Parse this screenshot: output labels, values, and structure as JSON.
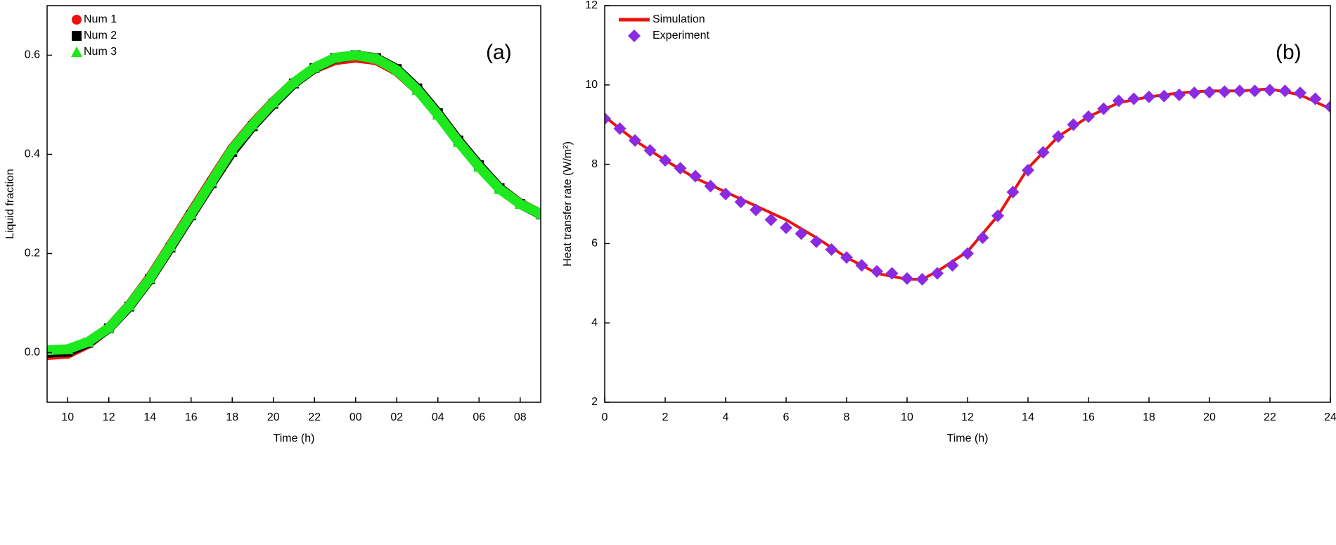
{
  "chart_data": [
    {
      "type": "line",
      "xlabel": "Time (h)",
      "ylabel": "Liquid fraction",
      "annotation": "(a)",
      "xlim": [
        9,
        33
      ],
      "xticks": [
        10,
        12,
        14,
        16,
        18,
        20,
        22,
        {
          "value": 24,
          "label": "00"
        },
        {
          "value": 26,
          "label": "02"
        },
        {
          "value": 28,
          "label": "04"
        },
        {
          "value": 30,
          "label": "06"
        },
        {
          "value": 32,
          "label": "08"
        }
      ],
      "ylim": [
        -0.1,
        0.7
      ],
      "yticks": [
        {
          "value": 0,
          "label": "0.0"
        },
        0.2,
        0.4,
        0.6
      ],
      "legend": "upper left",
      "series": [
        {
          "name": "Num 1",
          "color": "#e8150f",
          "marker": "circle",
          "x": [
            9,
            10,
            11,
            12,
            13,
            14,
            15,
            16,
            17,
            18,
            19,
            20,
            21,
            22,
            23,
            24,
            25,
            26,
            27,
            28,
            29,
            30,
            31,
            32,
            33
          ],
          "values": [
            -0.005,
            -0.002,
            0.018,
            0.05,
            0.096,
            0.152,
            0.217,
            0.283,
            0.348,
            0.412,
            0.462,
            0.506,
            0.545,
            0.573,
            0.59,
            0.595,
            0.59,
            0.568,
            0.53,
            0.481,
            0.427,
            0.377,
            0.332,
            0.301,
            0.28
          ]
        },
        {
          "name": "Num 2",
          "color": "#000000",
          "marker": "square",
          "x": [
            9,
            10,
            11,
            12,
            13,
            14,
            15,
            16,
            17,
            18,
            19,
            20,
            21,
            22,
            23,
            24,
            25,
            26,
            27,
            28,
            29,
            30,
            31,
            32,
            33
          ],
          "values": [
            0.0,
            0.002,
            0.02,
            0.049,
            0.093,
            0.148,
            0.212,
            0.277,
            0.342,
            0.405,
            0.457,
            0.502,
            0.543,
            0.574,
            0.594,
            0.6,
            0.594,
            0.572,
            0.533,
            0.483,
            0.428,
            0.378,
            0.332,
            0.3,
            0.279
          ]
        },
        {
          "name": "Num 3",
          "color": "#1ee81e",
          "marker": "triangle",
          "x": [
            9,
            10,
            11,
            12,
            13,
            14,
            15,
            16,
            17,
            18,
            19,
            20,
            21,
            22,
            23,
            24,
            25,
            26,
            27,
            28,
            29,
            30,
            31,
            32,
            33
          ],
          "values": [
            0.005,
            0.007,
            0.022,
            0.05,
            0.095,
            0.15,
            0.215,
            0.28,
            0.345,
            0.41,
            0.46,
            0.505,
            0.545,
            0.575,
            0.595,
            0.6,
            0.593,
            0.57,
            0.53,
            0.48,
            0.425,
            0.375,
            0.33,
            0.3,
            0.28
          ]
        }
      ]
    },
    {
      "type": "line",
      "xlabel": "Time (h)",
      "ylabel": "Heat transfer rate (W/m²)",
      "annotation": "(b)",
      "xlim": [
        0,
        24
      ],
      "xticks": [
        0,
        2,
        4,
        6,
        8,
        10,
        12,
        14,
        16,
        18,
        20,
        22,
        24
      ],
      "ylim": [
        2,
        12
      ],
      "yticks": [
        2,
        4,
        6,
        8,
        10,
        12
      ],
      "legend": "upper left",
      "series": [
        {
          "name": "Simulation",
          "color": "#e8150f",
          "x": [
            0,
            1,
            2,
            3,
            4,
            5,
            6,
            7,
            8,
            9,
            10,
            10.5,
            11,
            12,
            13,
            13.5,
            14,
            15,
            16,
            17,
            18,
            19,
            20,
            21,
            22,
            23,
            24
          ],
          "values": [
            9.2,
            8.6,
            8.1,
            7.65,
            7.3,
            6.95,
            6.6,
            6.15,
            5.65,
            5.25,
            5.1,
            5.1,
            5.3,
            5.8,
            6.7,
            7.3,
            7.9,
            8.7,
            9.2,
            9.55,
            9.7,
            9.8,
            9.85,
            9.85,
            9.9,
            9.75,
            9.4
          ]
        },
        {
          "name": "Experiment",
          "color": "#8a2be2",
          "marker": "diamond",
          "x": [
            0,
            0.5,
            1,
            1.5,
            2,
            2.5,
            3,
            3.5,
            4,
            4.5,
            5,
            5.5,
            6,
            6.5,
            7,
            7.5,
            8,
            8.5,
            9,
            9.5,
            10,
            10.5,
            11,
            11.5,
            12,
            12.5,
            13,
            13.5,
            14,
            14.5,
            15,
            15.5,
            16,
            16.5,
            17,
            17.5,
            18,
            18.5,
            19,
            19.5,
            20,
            20.5,
            21,
            21.5,
            22,
            22.5,
            23,
            23.5,
            24
          ],
          "values": [
            9.15,
            8.9,
            8.6,
            8.35,
            8.1,
            7.9,
            7.7,
            7.45,
            7.25,
            7.05,
            6.85,
            6.6,
            6.4,
            6.25,
            6.05,
            5.85,
            5.65,
            5.45,
            5.3,
            5.25,
            5.12,
            5.1,
            5.25,
            5.45,
            5.75,
            6.15,
            6.7,
            7.3,
            7.85,
            8.3,
            8.7,
            9.0,
            9.2,
            9.4,
            9.6,
            9.65,
            9.7,
            9.72,
            9.75,
            9.8,
            9.82,
            9.83,
            9.85,
            9.85,
            9.87,
            9.85,
            9.8,
            9.65,
            9.45
          ]
        }
      ]
    }
  ]
}
